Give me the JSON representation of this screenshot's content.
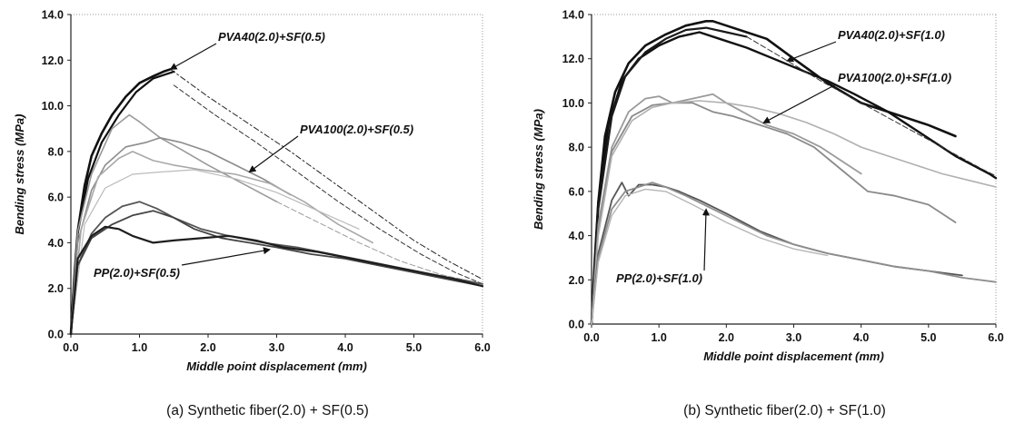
{
  "chart_data": [
    {
      "type": "line",
      "caption": "(a)  Synthetic  fiber(2.0)  +  SF(0.5)",
      "xlabel": "Middle point displacement (mm)",
      "ylabel": "Bending stress (MPa)",
      "xlim": [
        0,
        6
      ],
      "ylim": [
        0,
        14
      ],
      "xticks": [
        "0.0",
        "1.0",
        "2.0",
        "3.0",
        "4.0",
        "5.0",
        "6.0"
      ],
      "yticks": [
        "0.0",
        "2.0",
        "4.0",
        "6.0",
        "8.0",
        "10.0",
        "12.0",
        "14.0"
      ],
      "grid": false,
      "annotations": [
        {
          "text": "PVA40(2.0)+SF(0.5)",
          "points_to": [
            1.45,
            11.6
          ]
        },
        {
          "text": "PVA100(2.0)+SF(0.5)",
          "points_to": [
            2.6,
            7.1
          ]
        },
        {
          "text": "PP(2.0)+SF(0.5)",
          "points_to": [
            2.9,
            3.7
          ]
        }
      ],
      "series": [
        {
          "color": "#111111",
          "width": 2.6,
          "x": [
            0,
            0.05,
            0.1,
            0.2,
            0.3,
            0.45,
            0.6,
            0.8,
            1.0,
            1.2,
            1.35,
            1.45
          ],
          "y": [
            0,
            2.5,
            4.5,
            6.5,
            7.8,
            8.8,
            9.6,
            10.4,
            11.0,
            11.3,
            11.5,
            11.6
          ]
        },
        {
          "color": "#111111",
          "width": 2.2,
          "x": [
            0,
            0.1,
            0.25,
            0.45,
            0.7,
            0.95,
            1.2,
            1.4,
            1.5
          ],
          "y": [
            0,
            4.4,
            6.8,
            8.4,
            9.6,
            10.6,
            11.2,
            11.4,
            11.5
          ]
        },
        {
          "color": "#222222",
          "width": 1,
          "dash": "6 3 2 3",
          "x": [
            1.45,
            2.0,
            2.6,
            3.2,
            3.8,
            4.4,
            5.0,
            5.5,
            6.0
          ],
          "y": [
            11.6,
            10.4,
            9.2,
            8.0,
            6.7,
            5.4,
            4.1,
            3.2,
            2.4
          ]
        },
        {
          "color": "#333333",
          "width": 1,
          "dash": "5 3",
          "x": [
            1.5,
            2.1,
            2.7,
            3.3,
            3.9,
            4.5,
            5.1,
            5.6,
            6.0
          ],
          "y": [
            10.9,
            9.6,
            8.4,
            7.1,
            5.8,
            4.6,
            3.5,
            2.7,
            2.2
          ]
        },
        {
          "color": "#9a9a9a",
          "width": 1.6,
          "x": [
            0,
            0.1,
            0.3,
            0.6,
            0.85,
            1.0,
            1.3,
            1.6,
            2.0,
            2.5,
            3.0
          ],
          "y": [
            0,
            4.5,
            7.0,
            9.0,
            9.6,
            9.3,
            8.6,
            8.1,
            7.4,
            6.6,
            5.8
          ]
        },
        {
          "color": "#8c8c8c",
          "width": 1.6,
          "x": [
            0,
            0.1,
            0.3,
            0.5,
            0.8,
            1.1,
            1.3,
            1.6,
            2.0,
            2.4,
            2.8,
            3.2
          ],
          "y": [
            0,
            4.0,
            6.3,
            7.4,
            8.2,
            8.4,
            8.6,
            8.4,
            8.0,
            7.4,
            6.8,
            6.1
          ]
        },
        {
          "color": "#a8a8a8",
          "width": 1.6,
          "x": [
            0,
            0.15,
            0.4,
            0.7,
            0.9,
            1.2,
            1.5,
            1.9,
            2.4,
            2.9,
            3.4,
            3.9,
            4.4
          ],
          "y": [
            0,
            4.6,
            6.9,
            7.7,
            8.0,
            7.6,
            7.4,
            7.2,
            7.0,
            6.6,
            5.8,
            4.8,
            4.0
          ]
        },
        {
          "color": "#bbbbbb",
          "width": 1.2,
          "x": [
            0,
            0.2,
            0.5,
            0.9,
            1.3,
            1.8,
            2.4,
            3.0,
            3.6,
            4.2
          ],
          "y": [
            0,
            4.8,
            6.4,
            7.0,
            7.1,
            7.2,
            6.8,
            6.2,
            5.4,
            4.6
          ]
        },
        {
          "color": "#9b9b9b",
          "width": 1,
          "dash": "6 3",
          "x": [
            3.0,
            3.6,
            4.2,
            4.8,
            5.4,
            6.0
          ],
          "y": [
            5.8,
            4.9,
            4.0,
            3.2,
            2.6,
            2.2
          ]
        },
        {
          "color": "#555555",
          "width": 1.8,
          "x": [
            0,
            0.1,
            0.3,
            0.5,
            0.75,
            1.0,
            1.25,
            1.5,
            1.9,
            2.3,
            2.8,
            3.3,
            3.8,
            4.3,
            4.8,
            5.3,
            6.0
          ],
          "y": [
            0,
            3.0,
            4.4,
            5.1,
            5.6,
            5.8,
            5.5,
            5.1,
            4.6,
            4.3,
            4.0,
            3.8,
            3.5,
            3.2,
            2.9,
            2.6,
            2.2
          ]
        },
        {
          "color": "#444444",
          "width": 1.8,
          "x": [
            0,
            0.1,
            0.3,
            0.6,
            0.9,
            1.2,
            1.5,
            1.8,
            2.2,
            2.6,
            3.0,
            3.5,
            4.0,
            4.5,
            5.0,
            5.5,
            6.0
          ],
          "y": [
            0,
            3.0,
            4.2,
            4.8,
            5.2,
            5.4,
            5.1,
            4.6,
            4.2,
            4.0,
            3.8,
            3.5,
            3.3,
            3.0,
            2.7,
            2.4,
            2.1
          ]
        },
        {
          "color": "#1e1e1e",
          "width": 2.2,
          "x": [
            0,
            0.1,
            0.3,
            0.5,
            0.7,
            0.9,
            1.2,
            1.5,
            1.9,
            2.3,
            2.7,
            3.1,
            3.6,
            4.1,
            4.6,
            5.1,
            5.6,
            6.0
          ],
          "y": [
            0,
            3.3,
            4.3,
            4.7,
            4.6,
            4.3,
            4.0,
            4.1,
            4.2,
            4.3,
            4.1,
            3.8,
            3.6,
            3.3,
            3.0,
            2.7,
            2.4,
            2.1
          ]
        }
      ]
    },
    {
      "type": "line",
      "caption": "(b)  Synthetic  fiber(2.0)  +  SF(1.0)",
      "xlabel": "Middle point displacement (mm)",
      "ylabel": "Bending stress (MPa)",
      "xlim": [
        0,
        6
      ],
      "ylim": [
        0,
        14
      ],
      "xticks": [
        "0.0",
        "1.0",
        "2.0",
        "3.0",
        "4.0",
        "5.0",
        "6.0"
      ],
      "yticks": [
        "0.0",
        "2.0",
        "4.0",
        "6.0",
        "8.0",
        "10.0",
        "12.0",
        "14.0"
      ],
      "grid": false,
      "annotations": [
        {
          "text": "PVA40(2.0)+SF(1.0)",
          "points_to": [
            2.9,
            11.9
          ]
        },
        {
          "text": "PVA100(2.0)+SF(1.0)",
          "points_to": [
            2.55,
            9.1
          ]
        },
        {
          "text": "PP(2.0)+SF(1.0)",
          "points_to": [
            1.7,
            5.2
          ]
        }
      ],
      "series": [
        {
          "color": "#111111",
          "width": 2.6,
          "x": [
            0,
            0.05,
            0.1,
            0.2,
            0.35,
            0.55,
            0.8,
            1.1,
            1.4,
            1.7,
            1.8,
            2.0,
            2.3,
            2.6,
            3.0,
            3.5,
            4.0,
            4.5,
            5.0,
            5.4
          ],
          "y": [
            0,
            3,
            5.5,
            8.5,
            10.5,
            11.8,
            12.6,
            13.1,
            13.5,
            13.7,
            13.7,
            13.5,
            13.2,
            12.9,
            12.0,
            10.9,
            10.0,
            9.5,
            9.0,
            8.5
          ]
        },
        {
          "color": "#111111",
          "width": 2.4,
          "x": [
            0,
            0.1,
            0.25,
            0.45,
            0.7,
            1.0,
            1.3,
            1.6,
            1.9,
            2.3,
            2.7,
            3.1,
            3.5,
            3.9,
            4.4,
            4.9,
            5.4,
            5.9,
            6.0
          ],
          "y": [
            0,
            5.5,
            9.0,
            11.0,
            12.0,
            12.6,
            13.0,
            13.2,
            12.9,
            12.5,
            12.0,
            11.5,
            11.0,
            10.4,
            9.6,
            8.6,
            7.6,
            6.8,
            6.6
          ]
        },
        {
          "color": "#1a1a1a",
          "width": 2.2,
          "x": [
            0,
            0.1,
            0.3,
            0.5,
            0.8,
            1.1,
            1.4,
            1.7,
            2.0,
            2.3
          ],
          "y": [
            0,
            5.2,
            9.4,
            11.2,
            12.3,
            12.9,
            13.3,
            13.4,
            13.2,
            13.0
          ]
        },
        {
          "color": "#333333",
          "width": 1,
          "dash": "6 3",
          "x": [
            2.3,
            2.8,
            3.4,
            4.0,
            4.6,
            5.2,
            5.8,
            6.0
          ],
          "y": [
            13.0,
            12.1,
            11.0,
            10.0,
            9.0,
            8.0,
            7.0,
            6.7
          ]
        },
        {
          "color": "#9a9a9a",
          "width": 1.8,
          "x": [
            0,
            0.1,
            0.3,
            0.55,
            0.8,
            1.0,
            1.2,
            1.5,
            1.8,
            2.0,
            2.3,
            2.6,
            3.0,
            3.4,
            3.8,
            4.0
          ],
          "y": [
            0,
            4.5,
            8.0,
            9.6,
            10.2,
            10.3,
            10.0,
            10.2,
            10.4,
            10.0,
            9.5,
            9.0,
            8.6,
            8.0,
            7.2,
            6.8
          ]
        },
        {
          "color": "#8a8a8a",
          "width": 1.8,
          "x": [
            0,
            0.1,
            0.3,
            0.6,
            0.9,
            1.2,
            1.5,
            1.8,
            2.1,
            2.5,
            2.9,
            3.3,
            3.7,
            4.1,
            4.5,
            5.0,
            5.4
          ],
          "y": [
            0,
            4.2,
            7.8,
            9.4,
            9.9,
            10.0,
            10.0,
            9.6,
            9.4,
            9.0,
            8.6,
            8.0,
            7.0,
            6.0,
            5.8,
            5.4,
            4.6
          ]
        },
        {
          "color": "#b0b0b0",
          "width": 1.6,
          "x": [
            0,
            0.1,
            0.3,
            0.6,
            0.9,
            1.2,
            1.6,
            2.0,
            2.4,
            2.8,
            3.2,
            3.6,
            4.0,
            4.4,
            4.8,
            5.2,
            5.6,
            6.0
          ],
          "y": [
            0,
            4.0,
            7.6,
            9.2,
            9.8,
            10.0,
            10.1,
            10.0,
            9.8,
            9.5,
            9.1,
            8.6,
            8.0,
            7.6,
            7.2,
            6.8,
            6.5,
            6.2
          ]
        },
        {
          "color": "#555555",
          "width": 1.8,
          "x": [
            0,
            0.1,
            0.3,
            0.45,
            0.55,
            0.7,
            0.9,
            1.1,
            1.3,
            1.6,
            2.0,
            2.5,
            3.0,
            3.5,
            4.0,
            4.5,
            5.0,
            5.5
          ],
          "y": [
            0,
            3.2,
            5.6,
            6.4,
            5.8,
            6.3,
            6.3,
            6.2,
            6.0,
            5.6,
            5.0,
            4.2,
            3.6,
            3.2,
            2.9,
            2.6,
            2.4,
            2.2
          ]
        },
        {
          "color": "#8e8e8e",
          "width": 1.8,
          "x": [
            0,
            0.1,
            0.3,
            0.5,
            0.7,
            0.9,
            1.1,
            1.4,
            1.8,
            2.2,
            2.6,
            3.0,
            3.5,
            4.0,
            4.5,
            5.0,
            5.5,
            6.0
          ],
          "y": [
            0,
            3.0,
            5.2,
            6.0,
            6.2,
            6.4,
            6.2,
            5.8,
            5.2,
            4.6,
            4.0,
            3.6,
            3.2,
            2.9,
            2.6,
            2.4,
            2.1,
            1.9
          ]
        },
        {
          "color": "#b5b5b5",
          "width": 1.4,
          "x": [
            0,
            0.1,
            0.3,
            0.5,
            0.8,
            1.1,
            1.5,
            2.0,
            2.5,
            3.0,
            3.5
          ],
          "y": [
            0,
            2.8,
            4.9,
            5.8,
            6.1,
            6.0,
            5.4,
            4.6,
            3.9,
            3.4,
            3.1
          ]
        }
      ]
    }
  ]
}
